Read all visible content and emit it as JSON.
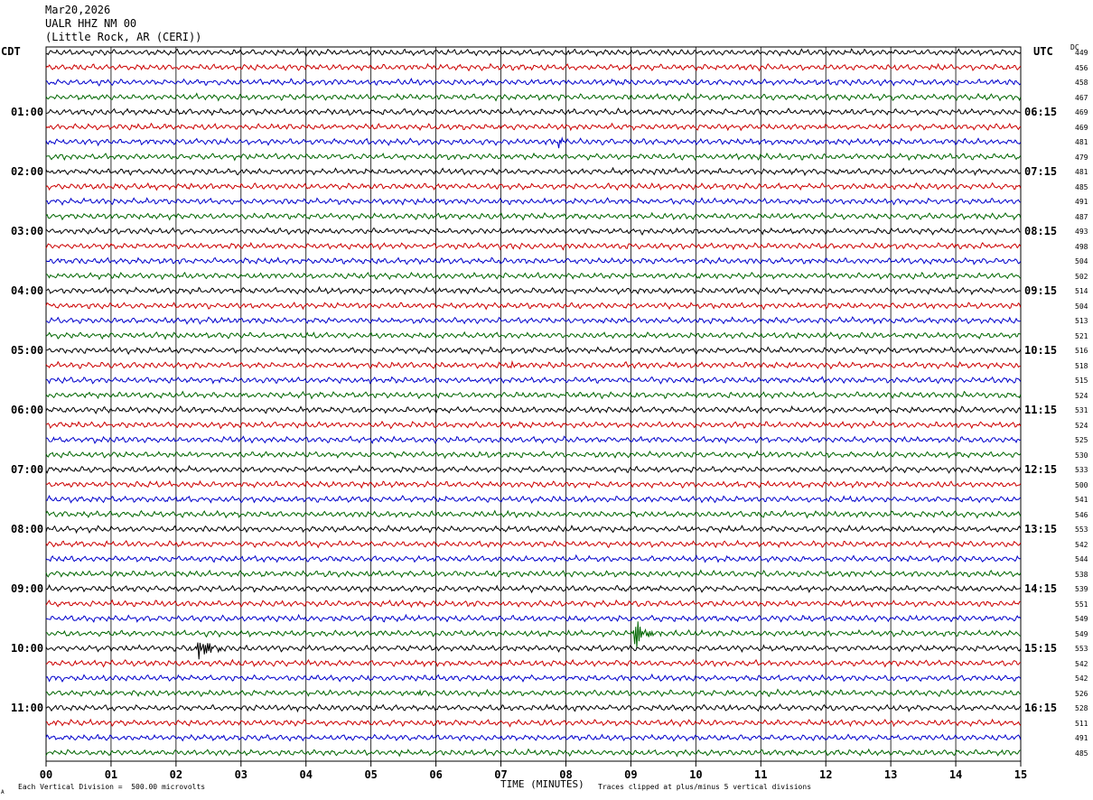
{
  "header": {
    "date": "Mar20,2026",
    "station": "UALR HHZ NM 00",
    "location": "(Little Rock, AR (CERI))"
  },
  "labels": {
    "left_tz": "CDT",
    "right_tz": "UTC",
    "dc": "DC",
    "x_axis": "TIME (MINUTES)",
    "scale_note": "Each Vertical Division =  500.00 microvolts",
    "clip_note": "Traces clipped at plus/minus 5 vertical divisions",
    "corner_mark": "A"
  },
  "chart_data": {
    "type": "line",
    "title": "UALR HHZ NM 00",
    "xlabel": "TIME (MINUTES)",
    "xlim": [
      0,
      15
    ],
    "x_ticks": [
      "00",
      "01",
      "02",
      "03",
      "04",
      "05",
      "06",
      "07",
      "08",
      "09",
      "10",
      "11",
      "12",
      "13",
      "14",
      "15"
    ],
    "trace_colors": [
      "#000000",
      "#cc0000",
      "#0000cc",
      "#006600"
    ],
    "left_hour_labels": [
      "01:00",
      "02:00",
      "03:00",
      "04:00",
      "05:00",
      "06:00",
      "07:00",
      "08:00",
      "09:00",
      "10:00",
      "11:00"
    ],
    "right_hour_labels": [
      "06:15",
      "07:15",
      "08:15",
      "09:15",
      "10:15",
      "11:15",
      "12:15",
      "13:15",
      "14:15",
      "15:15",
      "16:15"
    ],
    "dc_offsets": [
      "449",
      "456",
      "458",
      "467",
      "469",
      "469",
      "481",
      "479",
      "481",
      "485",
      "491",
      "487",
      "493",
      "498",
      "504",
      "502",
      "514",
      "504",
      "513",
      "521",
      "516",
      "518",
      "515",
      "524",
      "531",
      "524",
      "525",
      "530",
      "533",
      "500",
      "541",
      "546",
      "553",
      "542",
      "544",
      "538",
      "539",
      "551",
      "549",
      "549",
      "553",
      "542",
      "542",
      "526",
      "528",
      "511",
      "491",
      "485"
    ],
    "events": [
      {
        "trace": 6,
        "minute": 7.9,
        "amplitude": "small"
      },
      {
        "trace": 21,
        "minute": 7.15,
        "amplitude": "small"
      },
      {
        "trace": 39,
        "minute": 9.05,
        "amplitude": "large"
      },
      {
        "trace": 40,
        "minute": 2.35,
        "amplitude": "large"
      },
      {
        "trace": 43,
        "minute": 5.75,
        "amplitude": "small"
      }
    ]
  }
}
